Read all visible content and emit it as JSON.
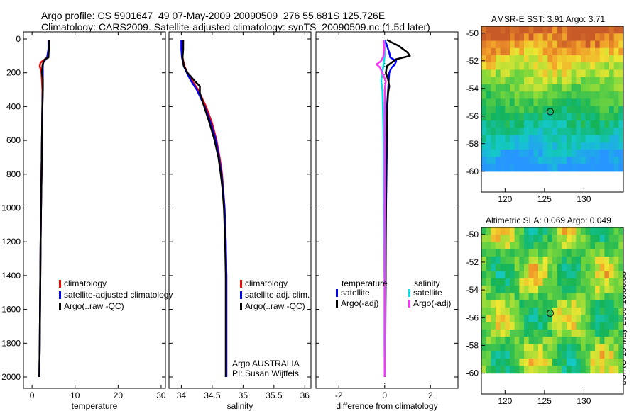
{
  "figure": {
    "title_line1": "Argo profile: CS 5901647_49 07-May-2009 20090509_276 55.681S 125.726E",
    "title_line2": "Climatology: CARS2009. Satellite-adjusted climatology: synTS_20090509.nc (1.5d later)",
    "timestamp": "CSIRO 15-May-2009 10:30:33"
  },
  "colors": {
    "climatology": "#ff0000",
    "satellite": "#0000ff",
    "argo": "#000000",
    "sal_satellite": "#00e5e5",
    "sal_argo": "#ff33ff"
  },
  "chart_data": [
    {
      "type": "line",
      "name": "temperature-profile",
      "xlabel": "temperature",
      "xlim": [
        -2,
        31
      ],
      "ylim": [
        2050,
        0
      ],
      "xticks": [
        "0",
        "10",
        "20",
        "30"
      ],
      "yticks": [
        "0",
        "200",
        "400",
        "600",
        "800",
        "1000",
        "1200",
        "1400",
        "1600",
        "1800",
        "2000"
      ],
      "legend": [
        "climatology",
        "satellite-adjusted climatology",
        "Argo(..raw -QC)"
      ],
      "series": [
        {
          "name": "climatology",
          "color": "climatology",
          "depth": [
            5,
            60,
            110,
            140,
            160,
            200,
            300,
            400,
            600,
            800,
            1000,
            1200,
            1500,
            1800,
            2000
          ],
          "value": [
            3.9,
            3.85,
            3.5,
            2.0,
            1.8,
            2.2,
            2.4,
            2.4,
            2.3,
            2.2,
            2.1,
            2.0,
            1.9,
            1.8,
            1.7
          ]
        },
        {
          "name": "satellite-adjusted climatology",
          "color": "satellite",
          "depth": [
            5,
            60,
            110,
            140,
            160,
            200,
            300,
            400,
            600,
            800,
            1000,
            1200,
            1500,
            1800,
            2000
          ],
          "value": [
            3.8,
            3.8,
            3.5,
            2.6,
            2.5,
            2.5,
            2.5,
            2.4,
            2.3,
            2.2,
            2.1,
            2.0,
            1.9,
            1.8,
            1.7
          ]
        },
        {
          "name": "Argo(..raw -QC)",
          "color": "argo",
          "depth": [
            5,
            60,
            110,
            120,
            140,
            160,
            200,
            240,
            300,
            400,
            600,
            800,
            1000,
            1200,
            1500,
            1800,
            2000
          ],
          "value": [
            3.9,
            3.9,
            3.8,
            3.0,
            2.6,
            2.4,
            2.3,
            2.5,
            2.5,
            2.4,
            2.3,
            2.2,
            2.1,
            2.0,
            1.9,
            1.8,
            1.7
          ]
        }
      ]
    },
    {
      "type": "line",
      "name": "salinity-profile",
      "xlabel": "salinity",
      "xlim": [
        33.8,
        36.1
      ],
      "ylim": [
        2050,
        0
      ],
      "xticks": [
        "34",
        "34.5",
        "35",
        "35.5",
        "36"
      ],
      "legend": [
        "climatology",
        "satellite adj. clim.",
        "Argo(..raw -QC)"
      ],
      "annotation": [
        "Argo AUSTRALIA",
        "PI: Susan Wijffels"
      ],
      "series": [
        {
          "name": "climatology",
          "color": "climatology",
          "depth": [
            5,
            60,
            110,
            160,
            200,
            250,
            300,
            400,
            500,
            600,
            700,
            800,
            900,
            1000,
            1200,
            1400,
            1600,
            1800,
            2000
          ],
          "value": [
            34.03,
            34.02,
            34.02,
            34.05,
            34.1,
            34.18,
            34.27,
            34.4,
            34.5,
            34.57,
            34.62,
            34.66,
            34.68,
            34.7,
            34.72,
            34.73,
            34.73,
            34.73,
            34.73
          ]
        },
        {
          "name": "satellite adj. clim.",
          "color": "satellite",
          "depth": [
            5,
            60,
            110,
            160,
            200,
            250,
            300,
            400,
            500,
            600,
            700,
            800,
            900,
            1000,
            1200,
            1400,
            1600,
            1800,
            2000
          ],
          "value": [
            34.0,
            34.0,
            34.01,
            34.04,
            34.09,
            34.16,
            34.25,
            34.38,
            34.48,
            34.56,
            34.61,
            34.65,
            34.68,
            34.7,
            34.72,
            34.73,
            34.73,
            34.73,
            34.73
          ]
        },
        {
          "name": "Argo(..raw -QC)",
          "color": "argo",
          "depth": [
            5,
            60,
            110,
            160,
            200,
            250,
            280,
            320,
            400,
            500,
            600,
            700,
            800,
            900,
            1000,
            1200,
            1400,
            1600,
            1800,
            2000
          ],
          "value": [
            34.03,
            34.03,
            34.02,
            34.04,
            34.1,
            34.22,
            34.3,
            34.3,
            34.37,
            34.46,
            34.54,
            34.6,
            34.64,
            34.67,
            34.69,
            34.71,
            34.72,
            34.72,
            34.72,
            34.72
          ]
        }
      ]
    },
    {
      "type": "line",
      "name": "difference-profile",
      "xlabel": "difference from climatology",
      "xlim": [
        -3,
        3.2
      ],
      "ylim": [
        2050,
        0
      ],
      "xticks": [
        "-2",
        "0",
        "2"
      ],
      "legend_titles": [
        "temperature",
        "salinity"
      ],
      "legend_temperature": [
        "satellite",
        "Argo(-adj)"
      ],
      "legend_salinity": [
        "satellite",
        "Argo(-adj)"
      ],
      "series": [
        {
          "name": "temperature satellite",
          "color": "satellite",
          "depth": [
            5,
            40,
            80,
            110,
            130,
            150,
            170,
            200,
            300,
            400,
            600,
            800,
            1000,
            1200,
            1500,
            1800,
            2000
          ],
          "value": [
            0.0,
            0.1,
            0.2,
            0.25,
            0.5,
            0.45,
            0.3,
            0.2,
            0.15,
            0.1,
            0.1,
            0.08,
            0.06,
            0.05,
            0.04,
            0.03,
            0.03
          ]
        },
        {
          "name": "temperature Argo(-adj)",
          "color": "argo",
          "depth": [
            5,
            20,
            40,
            60,
            80,
            100,
            120,
            140,
            160,
            200,
            240,
            280,
            320,
            400,
            500,
            600,
            800,
            1000,
            1200,
            1400,
            1600,
            1800,
            2000
          ],
          "value": [
            0.1,
            0.3,
            0.6,
            0.8,
            1.0,
            1.1,
            0.5,
            0.3,
            0.1,
            0.05,
            0.15,
            0.2,
            0.15,
            0.12,
            0.1,
            0.08,
            0.06,
            0.05,
            0.04,
            0.04,
            0.03,
            0.03,
            0.03
          ]
        },
        {
          "name": "salinity satellite",
          "color": "sal_satellite",
          "depth": [
            5,
            50,
            100,
            150,
            200,
            250,
            300,
            400,
            600,
            800,
            1000,
            1200,
            1500,
            1800,
            2000
          ],
          "value": [
            -0.02,
            -0.01,
            0.0,
            -0.05,
            -0.1,
            -0.15,
            -0.1,
            -0.08,
            -0.05,
            -0.04,
            -0.03,
            -0.02,
            -0.01,
            -0.01,
            0.0
          ]
        },
        {
          "name": "salinity Argo(-adj)",
          "color": "sal_argo",
          "depth": [
            5,
            50,
            100,
            130,
            150,
            170,
            200,
            250,
            300,
            400,
            600,
            800,
            1000,
            1200,
            1500,
            1800,
            2000
          ],
          "value": [
            -0.05,
            -0.02,
            -0.05,
            -0.15,
            -0.35,
            -0.2,
            -0.1,
            0.05,
            0.0,
            0.0,
            0.0,
            0.0,
            0.0,
            0.0,
            0.0,
            0.0,
            0.0
          ]
        }
      ]
    },
    {
      "type": "heatmap",
      "name": "amsre-sst-map",
      "title": "AMSR-E SST: 3.91 Argo: 3.71",
      "xlim": [
        117,
        135
      ],
      "ylim": [
        -61.5,
        -49.5
      ],
      "xticks": [
        "120",
        "125",
        "130"
      ],
      "yticks": [
        "-50",
        "-52",
        "-54",
        "-56",
        "-58",
        "-60"
      ],
      "data_extent": {
        "lon": [
          117,
          135
        ],
        "lat": [
          -60,
          -49.5
        ]
      },
      "float_position": {
        "lon": 125.726,
        "lat": -55.681
      }
    },
    {
      "type": "heatmap",
      "name": "altimetric-sla-map",
      "title": "Altimetric SLA: 0.069 Argo: 0.049",
      "xlim": [
        117,
        135
      ],
      "ylim": [
        -61.5,
        -49.5
      ],
      "xticks": [
        "120",
        "125",
        "130"
      ],
      "yticks": [
        "-50",
        "-52",
        "-54",
        "-56",
        "-58",
        "-60"
      ],
      "data_extent": {
        "lon": [
          117,
          135
        ],
        "lat": [
          -60,
          -49.5
        ]
      },
      "float_position": {
        "lon": 125.726,
        "lat": -55.681
      }
    }
  ]
}
